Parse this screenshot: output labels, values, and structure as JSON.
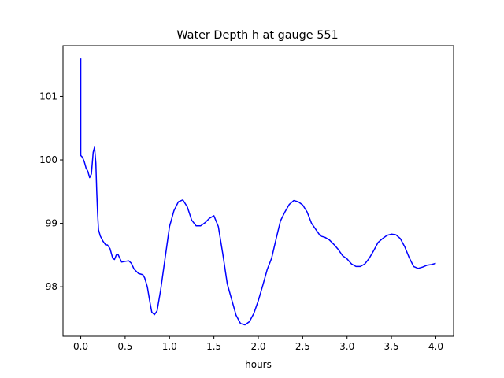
{
  "chart_data": {
    "type": "line",
    "title": "Water Depth h at gauge 551",
    "xlabel": "hours",
    "ylabel": "",
    "xlim": [
      -0.2,
      4.2
    ],
    "ylim": [
      97.22,
      101.8
    ],
    "grid": false,
    "xticks": [
      0.0,
      0.5,
      1.0,
      1.5,
      2.0,
      2.5,
      3.0,
      3.5,
      4.0
    ],
    "xtick_labels": [
      "0.0",
      "0.5",
      "1.0",
      "1.5",
      "2.0",
      "2.5",
      "3.0",
      "3.5",
      "4.0"
    ],
    "yticks": [
      98,
      99,
      100,
      101
    ],
    "ytick_labels": [
      "98",
      "99",
      "100",
      "101"
    ],
    "series": [
      {
        "color": "#0000ff",
        "x": [
          0.0,
          0.0,
          0.0,
          0.02,
          0.04,
          0.06,
          0.08,
          0.1,
          0.12,
          0.14,
          0.155,
          0.17,
          0.18,
          0.19,
          0.2,
          0.22,
          0.25,
          0.28,
          0.3,
          0.33,
          0.36,
          0.38,
          0.4,
          0.42,
          0.44,
          0.46,
          0.5,
          0.54,
          0.57,
          0.6,
          0.65,
          0.7,
          0.72,
          0.75,
          0.78,
          0.8,
          0.83,
          0.86,
          0.9,
          0.95,
          1.0,
          1.05,
          1.1,
          1.15,
          1.2,
          1.25,
          1.3,
          1.35,
          1.4,
          1.45,
          1.5,
          1.55,
          1.6,
          1.65,
          1.7,
          1.75,
          1.8,
          1.85,
          1.9,
          1.95,
          2.0,
          2.05,
          2.1,
          2.15,
          2.2,
          2.25,
          2.3,
          2.35,
          2.4,
          2.45,
          2.5,
          2.55,
          2.6,
          2.65,
          2.7,
          2.75,
          2.8,
          2.85,
          2.9,
          2.95,
          3.0,
          3.05,
          3.1,
          3.15,
          3.2,
          3.25,
          3.3,
          3.35,
          3.4,
          3.45,
          3.5,
          3.55,
          3.6,
          3.65,
          3.7,
          3.75,
          3.8,
          3.85,
          3.9,
          3.95,
          4.0
        ],
        "y": [
          101.6,
          100.7,
          100.07,
          100.04,
          99.97,
          99.87,
          99.82,
          99.72,
          99.78,
          100.12,
          100.2,
          99.95,
          99.5,
          99.15,
          98.9,
          98.8,
          98.72,
          98.66,
          98.66,
          98.6,
          98.45,
          98.43,
          98.5,
          98.51,
          98.45,
          98.39,
          98.4,
          98.41,
          98.37,
          98.28,
          98.21,
          98.19,
          98.14,
          98.0,
          97.75,
          97.6,
          97.56,
          97.62,
          97.95,
          98.45,
          98.95,
          99.2,
          99.34,
          99.37,
          99.26,
          99.05,
          98.96,
          98.96,
          99.01,
          99.08,
          99.12,
          98.95,
          98.52,
          98.05,
          97.8,
          97.55,
          97.42,
          97.4,
          97.45,
          97.58,
          97.78,
          98.02,
          98.27,
          98.45,
          98.75,
          99.04,
          99.18,
          99.3,
          99.36,
          99.34,
          99.29,
          99.18,
          99.0,
          98.9,
          98.8,
          98.78,
          98.74,
          98.67,
          98.59,
          98.49,
          98.44,
          98.36,
          98.32,
          98.32,
          98.36,
          98.45,
          98.57,
          98.7,
          98.76,
          98.81,
          98.83,
          98.82,
          98.76,
          98.63,
          98.46,
          98.32,
          98.29,
          98.31,
          98.34,
          98.35,
          98.37
        ]
      }
    ]
  }
}
